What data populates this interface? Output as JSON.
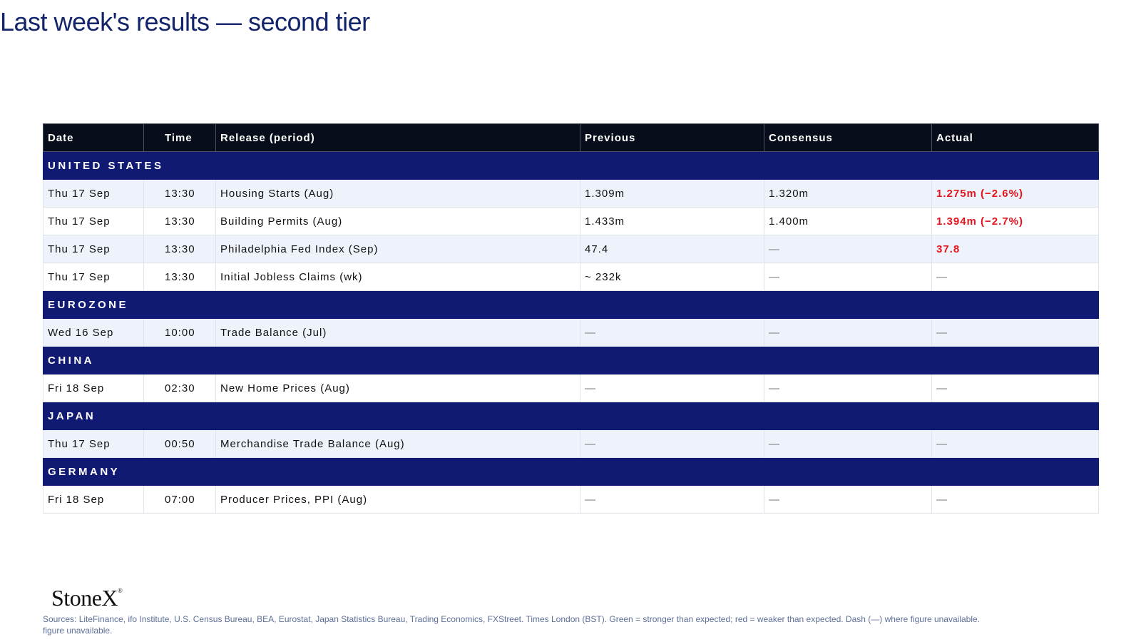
{
  "header": {
    "title": "Last week's results — second tier"
  },
  "table": {
    "columns": [
      "Date",
      "Time",
      "Release (period)",
      "Previous",
      "Consensus",
      "Actual"
    ],
    "sections": [
      {
        "name": "UNITED STATES",
        "rows": [
          {
            "cells": [
              "Thu 17 Sep",
              "13:30",
              "Housing Starts (Aug)",
              "1.309m",
              "1.320m",
              "1.275m (−2.6%)"
            ],
            "actual_color": "#e3141b"
          },
          {
            "cells": [
              "Thu 17 Sep",
              "13:30",
              "Building Permits (Aug)",
              "1.433m",
              "1.400m",
              "1.394m (−2.7%)"
            ],
            "actual_color": "#e3141b"
          },
          {
            "cells": [
              "Thu 17 Sep",
              "13:30",
              "Philadelphia Fed Index (Sep)",
              "47.4",
              "—",
              "37.8"
            ],
            "actual_color": "#e3141b"
          },
          {
            "cells": [
              "Thu 17 Sep",
              "13:30",
              "Initial Jobless Claims (wk)",
              "~ 232k",
              "—",
              "—"
            ]
          }
        ]
      },
      {
        "name": "EUROZONE",
        "rows": [
          {
            "cells": [
              "Wed 16 Sep",
              "10:00",
              "Trade Balance (Jul)",
              "—",
              "—",
              "—"
            ]
          }
        ]
      },
      {
        "name": "CHINA",
        "rows": [
          {
            "cells": [
              "Fri 18 Sep",
              "02:30",
              "New Home Prices (Aug)",
              "—",
              "—",
              "—"
            ]
          }
        ]
      },
      {
        "name": "JAPAN",
        "rows": [
          {
            "cells": [
              "Thu 17 Sep",
              "00:50",
              "Merchandise Trade Balance (Aug)",
              "—",
              "—",
              "—"
            ]
          }
        ]
      },
      {
        "name": "GERMANY",
        "rows": [
          {
            "cells": [
              "Fri 18 Sep",
              "07:00",
              "Producer Prices, PPI (Aug)",
              "—",
              "—",
              "—"
            ]
          }
        ]
      }
    ]
  },
  "footer": {
    "logo": "StoneX",
    "logo_mark": "®",
    "sources": "Sources: LiteFinance, ifo Institute, U.S. Census Bureau, BEA, Eurostat, Japan Statistics Bureau, Trading Economics, FXStreet.  Times London (BST). Green = stronger than expected; red = weaker than expected.  Dash (—) where figure unavailable.",
    "sources_overflow": "figure unavailable."
  }
}
